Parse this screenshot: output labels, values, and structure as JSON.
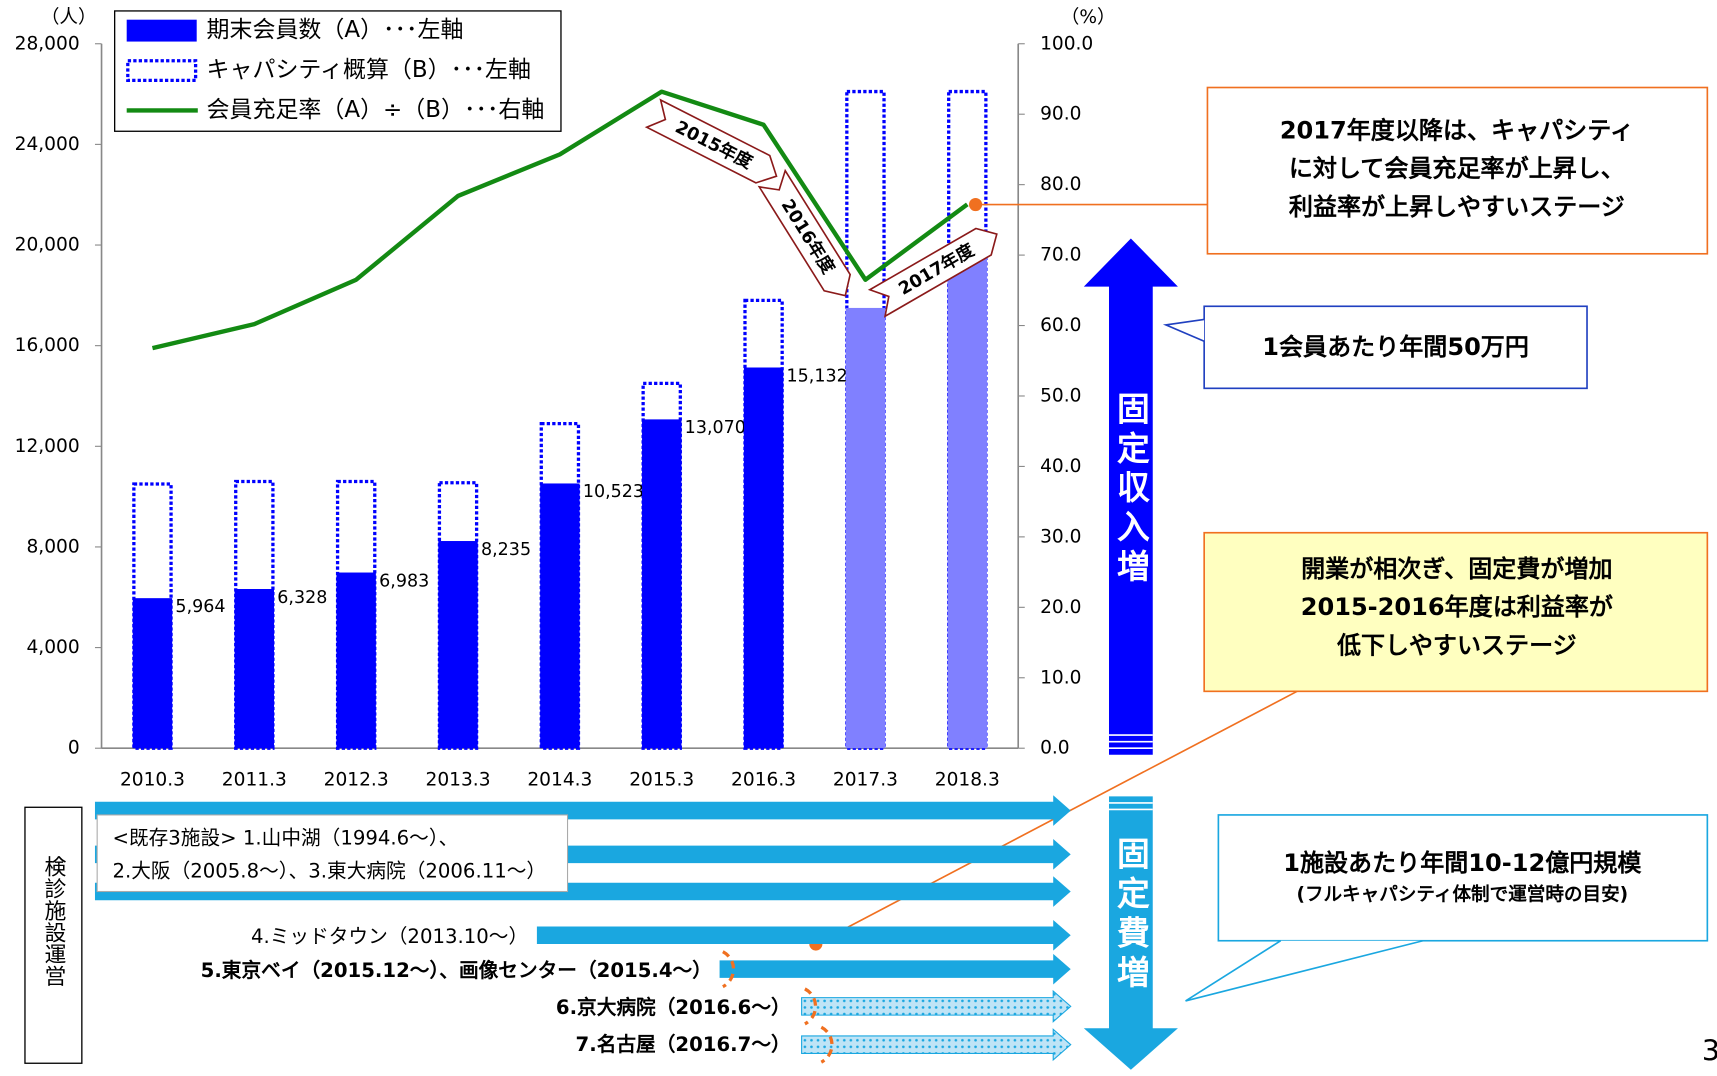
{
  "chart_data": {
    "type": "bar",
    "y_label": "（人）",
    "y2_label": "（%）",
    "categories": [
      "2010.3",
      "2011.3",
      "2012.3",
      "2013.3",
      "2014.3",
      "2015.3",
      "2016.3",
      "2017.3",
      "2018.3"
    ],
    "series": [
      {
        "name": "期末会員数（A）･･･左軸",
        "color": "#0000ff",
        "bar_colors": [
          "#0000ff",
          "#0000ff",
          "#0000ff",
          "#0000ff",
          "#0000ff",
          "#0000ff",
          "#0000ff",
          "#8080ff",
          "#8080ff"
        ],
        "values": [
          5964,
          6328,
          6983,
          8235,
          10523,
          13070,
          15132,
          17500,
          19700
        ],
        "value_labels": [
          "5,964",
          "6,328",
          "6,983",
          "8,235",
          "10,523",
          "13,070",
          "15,132",
          null,
          null
        ]
      },
      {
        "name": "キャパシティ概算（B）･･･左軸",
        "color": "#0000ff",
        "style": "dotted",
        "values": [
          10500,
          10600,
          10600,
          10550,
          12900,
          14500,
          17800,
          26100,
          26100
        ]
      },
      {
        "name": "会員充足率（A）÷（B）･･･右軸",
        "type": "line",
        "axis": "y2",
        "color": "#138a13",
        "values": [
          56.8,
          60.2,
          66.5,
          78.4,
          84.3,
          93.2,
          88.5,
          66.5,
          77.2
        ]
      }
    ],
    "ylim": [
      0,
      28000
    ],
    "yticks": [
      0,
      {
        "value": 4000,
        "label": "4,000"
      },
      {
        "value": 8000,
        "label": "8,000"
      },
      {
        "value": 12000,
        "label": "12,000"
      },
      {
        "value": 16000,
        "label": "16,000"
      },
      {
        "value": 20000,
        "label": "20,000"
      },
      {
        "value": 24000,
        "label": "24,000"
      },
      {
        "value": 28000,
        "label": "28,000"
      }
    ],
    "y2lim": [
      0,
      100
    ],
    "y2ticks": [
      {
        "value": 0,
        "label": "0.0"
      },
      {
        "value": 10,
        "label": "10.0"
      },
      {
        "value": 20,
        "label": "20.0"
      },
      {
        "value": 30,
        "label": "30.0"
      },
      {
        "value": 40,
        "label": "40.0"
      },
      {
        "value": 50,
        "label": "50.0"
      },
      {
        "value": 60,
        "label": "60.0"
      },
      {
        "value": 70,
        "label": "70.0"
      },
      {
        "value": 80,
        "label": "80.0"
      },
      {
        "value": 90,
        "label": "90.0"
      },
      {
        "value": 100,
        "label": "100.0"
      }
    ],
    "annotations": [
      "2015年度",
      "2016年度",
      "2017年度"
    ]
  },
  "arrows": {
    "up": "固定収入増",
    "down": "固定費増"
  },
  "callouts": [
    {
      "lines": [
        "2017年度以降は、キャパシティ",
        "に対して会員充足率が上昇し、",
        "利益率が上昇しやすいステージ"
      ]
    },
    {
      "lines": [
        "1会員あたり年間50万円"
      ]
    },
    {
      "lines": [
        "開業が相次ぎ、固定費が増加",
        "2015-2016年度は利益率が",
        "低下しやすいステージ"
      ]
    },
    {
      "lines": [
        "1施設あたり年間10-12億円規模",
        "(フルキャパシティ体制で運営時の目安)"
      ]
    }
  ],
  "facilities": {
    "label": "検診施設運営",
    "items": [
      "<既存3施設> 1.山中湖（1994.6～）、",
      "2.大阪（2005.8～）、3.東大病院（2006.11～）",
      "4.ミッドタウン（2013.10～）",
      "5.東京ベイ（2015.12～）、画像センター（2015.4～）",
      "6.京大病院（2016.6～）",
      "7.名古屋（2016.7～）"
    ]
  },
  "page_number": "3"
}
